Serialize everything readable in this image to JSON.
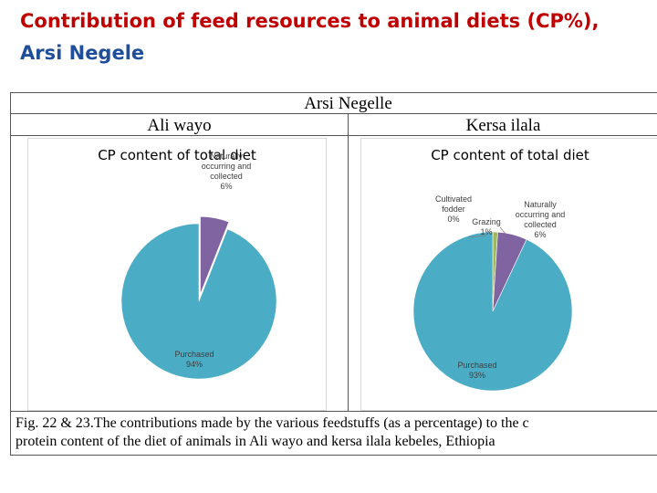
{
  "slide": {
    "title_line1": "Contribution of feed resources to animal diets (CP%),",
    "title_line2": "Arsi Negele"
  },
  "table": {
    "header": "Arsi Negelle",
    "left_site": "Ali wayo",
    "right_site": "Kersa ilala",
    "caption_line1": "Fig. 22 & 23.The contributions made by the various feedstuffs (as a percentage) to the c",
    "caption_line2": "protein content of the diet of animals in Ali wayo and kersa ilala  kebeles, Ethiopia"
  },
  "colors": {
    "purchased": "#4bacc6",
    "naturally": "#8064a2",
    "grazing": "#9bbb59",
    "cultivated": "#c0504d",
    "title_red": "#c00000",
    "title_blue": "#1f4e9a"
  },
  "chart_data": [
    {
      "type": "pie",
      "title": "CP content of total diet",
      "slices": [
        {
          "label": "Naturally occurring and collected",
          "value": 6,
          "value_label": "6%",
          "color": "#8064a2",
          "label_lines": [
            "Naturally",
            "occurring and",
            "collected"
          ]
        },
        {
          "label": "Purchased",
          "value": 94,
          "value_label": "94%",
          "color": "#4bacc6",
          "label_lines": [
            "Purchased"
          ]
        }
      ]
    },
    {
      "type": "pie",
      "title": "CP content of total diet",
      "slices": [
        {
          "label": "Cultivated fodder",
          "value": 0,
          "value_label": "0%",
          "color": "#c0504d",
          "label_lines": [
            "Cultivated",
            "fodder"
          ]
        },
        {
          "label": "Grazing",
          "value": 1,
          "value_label": "1%",
          "color": "#9bbb59",
          "label_lines": [
            "Grazing"
          ]
        },
        {
          "label": "Naturally occurring and collected",
          "value": 6,
          "value_label": "6%",
          "color": "#8064a2",
          "label_lines": [
            "Naturally",
            "occurring and",
            "collected"
          ]
        },
        {
          "label": "Purchased",
          "value": 93,
          "value_label": "93%",
          "color": "#4bacc6",
          "label_lines": [
            "Purchased"
          ]
        }
      ]
    }
  ]
}
